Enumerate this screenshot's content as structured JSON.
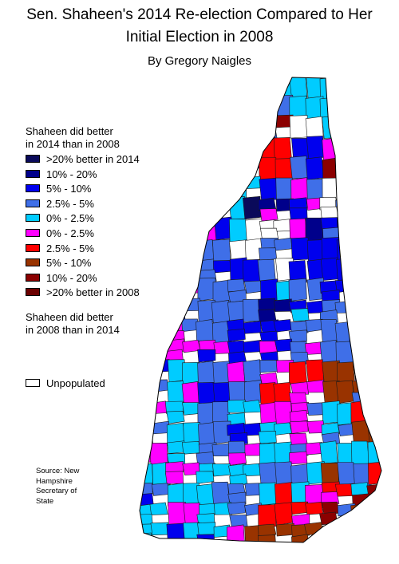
{
  "title_line1": "Sen. Shaheen's 2014 Re-election Compared to Her",
  "title_line2": "Initial Election in 2008",
  "byline": "By Gregory Naigles",
  "legend": {
    "header_top": [
      "Shaheen did better",
      "in 2014 than in 2008"
    ],
    "items": [
      {
        "label": ">20% better in 2014",
        "color": "#0a0a5a"
      },
      {
        "label": "10% - 20%",
        "color": "#00008b"
      },
      {
        "label": "5% - 10%",
        "color": "#0000ee"
      },
      {
        "label": "2.5% - 5%",
        "color": "#3f6fe8"
      },
      {
        "label": "0% - 2.5%",
        "color": "#00ccff"
      },
      {
        "label": "0% - 2.5%",
        "color": "#ff00ff"
      },
      {
        "label": "2.5% - 5%",
        "color": "#ff0000"
      },
      {
        "label": "5% - 10%",
        "color": "#993300"
      },
      {
        "label": "10% - 20%",
        "color": "#8b0000"
      },
      {
        "label": ">20% better in 2008",
        "color": "#6b0000"
      }
    ],
    "header_bottom": [
      "Shaheen did better",
      "in 2008 than in 2014"
    ],
    "unpopulated": {
      "label": "Unpopulated",
      "color": "#ffffff"
    }
  },
  "source": [
    "Source: New",
    "Hampshire",
    "Secretary of",
    "State"
  ]
}
